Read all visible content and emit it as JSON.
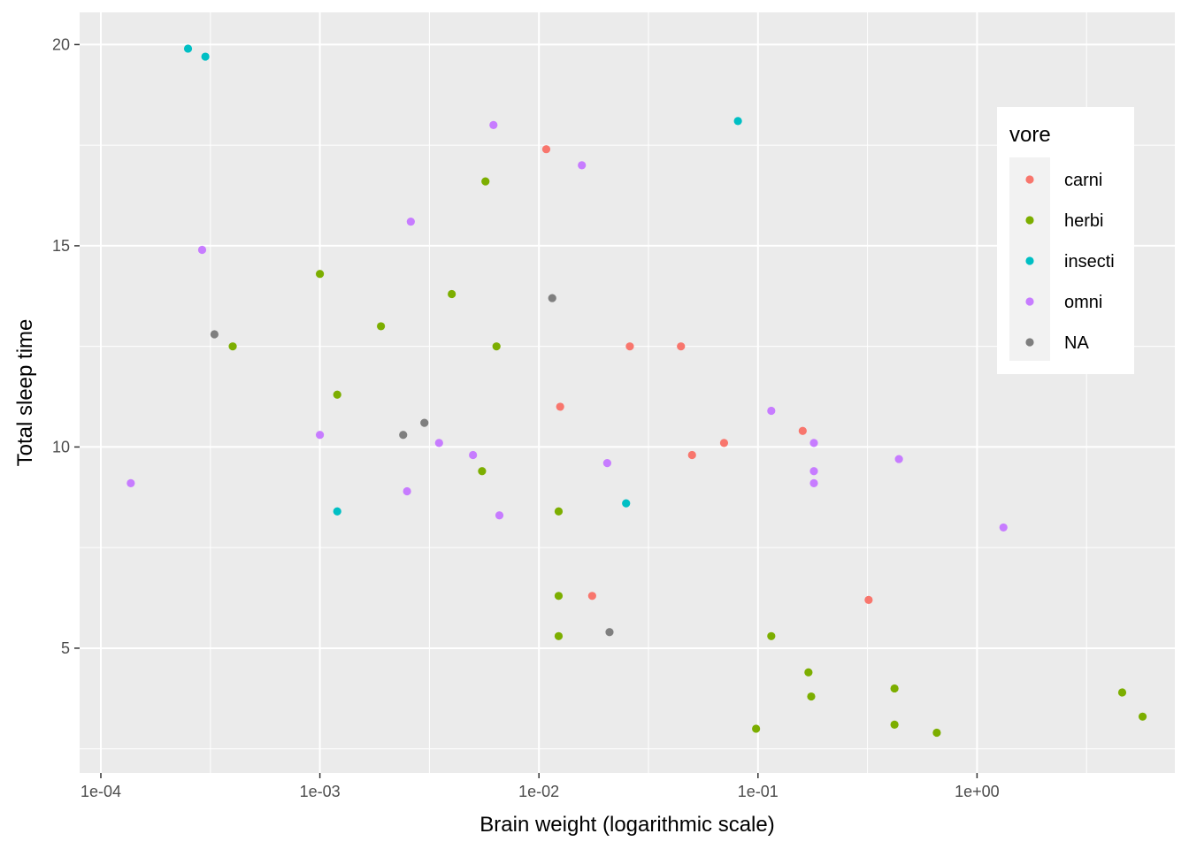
{
  "chart_data": {
    "type": "scatter",
    "title": "",
    "xlabel": "Brain weight (logarithmic scale)",
    "ylabel": "Total sleep time",
    "x_scale": "log10",
    "xlim": [
      8e-05,
      8
    ],
    "ylim": [
      1.9,
      20.8
    ],
    "x_ticks": [
      {
        "value": 0.0001,
        "label": "1e-04"
      },
      {
        "value": 0.001,
        "label": "1e-03"
      },
      {
        "value": 0.01,
        "label": "1e-02"
      },
      {
        "value": 0.1,
        "label": "1e-01"
      },
      {
        "value": 1,
        "label": "1e+00"
      }
    ],
    "y_ticks": [
      {
        "value": 5,
        "label": "5"
      },
      {
        "value": 10,
        "label": "10"
      },
      {
        "value": 15,
        "label": "15"
      },
      {
        "value": 20,
        "label": "20"
      }
    ],
    "grid": true,
    "legend": {
      "title": "vore",
      "placement": "top-right"
    },
    "series": [
      {
        "name": "carni",
        "color": "#F8766D",
        "points": [
          [
            0.0108,
            17.4
          ],
          [
            0.026,
            12.5
          ],
          [
            0.0445,
            12.5
          ],
          [
            0.0125,
            11.0
          ],
          [
            0.07,
            10.1
          ],
          [
            0.16,
            10.4
          ],
          [
            0.05,
            9.8
          ],
          [
            0.0175,
            6.3
          ],
          [
            0.32,
            6.2
          ]
        ]
      },
      {
        "name": "herbi",
        "color": "#7CAE00",
        "points": [
          [
            0.0057,
            16.6
          ],
          [
            0.001,
            14.3
          ],
          [
            0.004,
            13.8
          ],
          [
            0.0019,
            13.0
          ],
          [
            0.0004,
            12.5
          ],
          [
            0.0064,
            12.5
          ],
          [
            0.0012,
            11.3
          ],
          [
            0.0055,
            9.4
          ],
          [
            0.0123,
            8.4
          ],
          [
            0.0123,
            6.3
          ],
          [
            0.0123,
            5.3
          ],
          [
            0.115,
            5.3
          ],
          [
            0.17,
            4.4
          ],
          [
            0.175,
            3.8
          ],
          [
            0.42,
            4.0
          ],
          [
            0.42,
            3.1
          ],
          [
            0.098,
            3.0
          ],
          [
            0.655,
            2.9
          ],
          [
            4.6,
            3.9
          ],
          [
            5.7,
            3.3
          ]
        ]
      },
      {
        "name": "insecti",
        "color": "#00BFC4",
        "points": [
          [
            0.00025,
            19.9
          ],
          [
            0.0003,
            19.7
          ],
          [
            0.081,
            18.1
          ],
          [
            0.0012,
            8.4
          ],
          [
            0.025,
            8.6
          ]
        ]
      },
      {
        "name": "omni",
        "color": "#C77CFF",
        "points": [
          [
            0.0062,
            18.0
          ],
          [
            0.0157,
            17.0
          ],
          [
            0.0026,
            15.6
          ],
          [
            0.00029,
            14.9
          ],
          [
            0.000137,
            9.1
          ],
          [
            0.001,
            10.3
          ],
          [
            0.0035,
            10.1
          ],
          [
            0.005,
            9.8
          ],
          [
            0.0025,
            8.9
          ],
          [
            0.0066,
            8.3
          ],
          [
            0.0205,
            9.6
          ],
          [
            0.115,
            10.9
          ],
          [
            0.18,
            10.1
          ],
          [
            0.18,
            9.4
          ],
          [
            0.18,
            9.1
          ],
          [
            0.44,
            9.7
          ],
          [
            1.32,
            8.0
          ]
        ]
      },
      {
        "name": "NA",
        "color": "#7F7F7F",
        "points": [
          [
            0.00033,
            12.8
          ],
          [
            0.0024,
            10.3
          ],
          [
            0.003,
            10.6
          ],
          [
            0.0115,
            13.7
          ],
          [
            0.021,
            5.4
          ]
        ]
      }
    ]
  }
}
